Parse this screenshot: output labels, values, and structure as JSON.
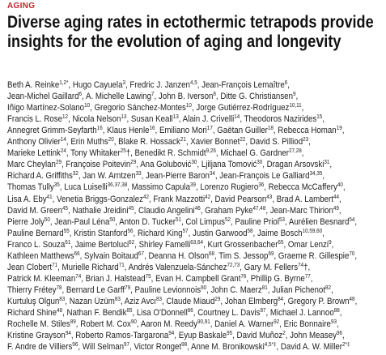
{
  "section": "AGING",
  "title": [
    "Diverse aging rates in ectothermic tetrapods provide",
    "insights for the evolution of aging and longevity"
  ],
  "authors": [
    [
      {
        "text": "Beth A. Reinke",
        "sup": "1,2*"
      },
      {
        "text": ", Hugo Cayuela",
        "sup": "3"
      },
      {
        "text": ", Fredric J. Janzen",
        "sup": "4,5"
      },
      {
        "text": ", Jean-François Lemaître",
        "sup": "6"
      },
      {
        "text": ","
      }
    ],
    [
      {
        "text": "Jean-Michel Gaillard",
        "sup": "6"
      },
      {
        "text": ", A. Michelle Lawing",
        "sup": "7"
      },
      {
        "text": ", John B. Iverson",
        "sup": "8"
      },
      {
        "text": ", Ditte G. Christiansen",
        "sup": "9"
      },
      {
        "text": ","
      }
    ],
    [
      {
        "text": "Iñigo Martínez-Solano",
        "sup": "10"
      },
      {
        "text": ", Gregorio Sánchez-Montes",
        "sup": "10"
      },
      {
        "text": ", Jorge Gutiérrez-Rodríguez",
        "sup": "10,11"
      },
      {
        "text": ","
      }
    ],
    [
      {
        "text": "Francis L. Rose",
        "sup": "12"
      },
      {
        "text": ", Nicola Nelson",
        "sup": "13"
      },
      {
        "text": ", Susan Keall",
        "sup": "13"
      },
      {
        "text": ", Alain J. Crivelli",
        "sup": "14"
      },
      {
        "text": ", Theodoros Nazirides",
        "sup": "15"
      },
      {
        "text": ","
      }
    ],
    [
      {
        "text": "Annegret Grimm-Seyfarth",
        "sup": "16"
      },
      {
        "text": ", Klaus Henle",
        "sup": "16"
      },
      {
        "text": ", Emiliano Mori",
        "sup": "17"
      },
      {
        "text": ", Gaëtan Guiller",
        "sup": "18"
      },
      {
        "text": ", Rebecca Homan",
        "sup": "19"
      },
      {
        "text": ","
      }
    ],
    [
      {
        "text": "Anthony Olivier",
        "sup": "14"
      },
      {
        "text": ", Erin Muths",
        "sup": "20"
      },
      {
        "text": ", Blake R. Hossack",
        "sup": "21"
      },
      {
        "text": ", Xavier Bonnet",
        "sup": "22"
      },
      {
        "text": ", David S. Pilliod",
        "sup": "23"
      },
      {
        "text": ","
      }
    ],
    [
      {
        "text": "Marieke Lettink",
        "sup": "24"
      },
      {
        "text": ", Tony Whitaker",
        "sup": "25"
      },
      {
        "text": "†, Benedikt R. Schmidt",
        "sup": "9,26"
      },
      {
        "text": ", Michael G. Gardner",
        "sup": "27,28"
      },
      {
        "text": ","
      }
    ],
    [
      {
        "text": "Marc Cheylan",
        "sup": "29"
      },
      {
        "text": ", Françoise Poitevin",
        "sup": "29"
      },
      {
        "text": ", Ana Golubović",
        "sup": "30"
      },
      {
        "text": ", Ljiljana Tomović",
        "sup": "30"
      },
      {
        "text": ", Dragan Arsovski",
        "sup": "31"
      },
      {
        "text": ","
      }
    ],
    [
      {
        "text": "Richard A. Griffiths",
        "sup": "32"
      },
      {
        "text": ", Jan W. Arntzen",
        "sup": "33"
      },
      {
        "text": ", Jean-Pierre Baron",
        "sup": "34"
      },
      {
        "text": ", Jean-François Le Galliard",
        "sup": "34,35"
      },
      {
        "text": ","
      }
    ],
    [
      {
        "text": "Thomas Tully",
        "sup": "35"
      },
      {
        "text": ", Luca Luiselli",
        "sup": "36,37,38"
      },
      {
        "text": ", Massimo Capula",
        "sup": "39"
      },
      {
        "text": ", Lorenzo Rugiero",
        "sup": "36"
      },
      {
        "text": ", Rebecca McCaffery",
        "sup": "40"
      },
      {
        "text": ","
      }
    ],
    [
      {
        "text": "Lisa A. Eby",
        "sup": "41"
      },
      {
        "text": ", Venetia Briggs-Gonzalez",
        "sup": "42"
      },
      {
        "text": ", Frank Mazzotti",
        "sup": "42"
      },
      {
        "text": ", David Pearson",
        "sup": "43"
      },
      {
        "text": ", Brad A. Lambert",
        "sup": "44"
      },
      {
        "text": ","
      }
    ],
    [
      {
        "text": "David M. Green",
        "sup": "45"
      },
      {
        "text": ", Nathalie Jreidini",
        "sup": "45"
      },
      {
        "text": ", Claudio Angelini",
        "sup": "46"
      },
      {
        "text": ", Graham Pyke",
        "sup": "47,48"
      },
      {
        "text": ", Jean-Marc Thirion",
        "sup": "49"
      },
      {
        "text": ","
      }
    ],
    [
      {
        "text": "Pierre Joly",
        "sup": "50"
      },
      {
        "text": ", Jean-Paul Léna",
        "sup": "50"
      },
      {
        "text": ", Anton D. Tucker",
        "sup": "51"
      },
      {
        "text": ", Col Limpus",
        "sup": "52"
      },
      {
        "text": ", Pauline Priol",
        "sup": "53"
      },
      {
        "text": ", Aurélien Besnard",
        "sup": "54"
      },
      {
        "text": ","
      }
    ],
    [
      {
        "text": "Pauline Bernard",
        "sup": "55"
      },
      {
        "text": ", Kristin Stanford",
        "sup": "56"
      },
      {
        "text": ", Richard King",
        "sup": "57"
      },
      {
        "text": ", Justin Garwood",
        "sup": "58"
      },
      {
        "text": ", Jaime Bosch",
        "sup": "10,59,60"
      },
      {
        "text": ","
      }
    ],
    [
      {
        "text": "Franco L. Souza",
        "sup": "61"
      },
      {
        "text": ", Jaime Bertoluci",
        "sup": "62"
      },
      {
        "text": ", Shirley Famelli",
        "sup": "63,64"
      },
      {
        "text": ", Kurt Grossenbacher",
        "sup": "65"
      },
      {
        "text": ", Omar Lenzi",
        "sup": "9"
      },
      {
        "text": ","
      }
    ],
    [
      {
        "text": "Kathleen Matthews",
        "sup": "66"
      },
      {
        "text": ", Sylvain Boitaud",
        "sup": "67"
      },
      {
        "text": ", Deanna H. Olson",
        "sup": "68"
      },
      {
        "text": ", Tim S. Jessop",
        "sup": "69"
      },
      {
        "text": ", Graeme R. Gillespie",
        "sup": "70"
      },
      {
        "text": ","
      }
    ],
    [
      {
        "text": "Jean Clobert",
        "sup": "71"
      },
      {
        "text": ", Murielle Richard",
        "sup": "71"
      },
      {
        "text": ", Andrés Valenzuela-Sánchez",
        "sup": "72,73"
      },
      {
        "text": ", Gary M. Fellers",
        "sup": "74"
      },
      {
        "text": "†,"
      }
    ],
    [
      {
        "text": "Patrick M. Kleeman",
        "sup": "74"
      },
      {
        "text": ", Brian J. Halstead",
        "sup": "75"
      },
      {
        "text": ", Evan H. Campbell Grant",
        "sup": "76"
      },
      {
        "text": ", Phillip G. Byrne",
        "sup": "77"
      },
      {
        "text": ","
      }
    ],
    [
      {
        "text": "Thierry Frétey",
        "sup": "78"
      },
      {
        "text": ", Bernard Le Garff",
        "sup": "79"
      },
      {
        "text": ", Pauline Levionnois",
        "sup": "80"
      },
      {
        "text": ", John C. Maerz",
        "sup": "81"
      },
      {
        "text": ", Julian Pichenot",
        "sup": "82"
      },
      {
        "text": ","
      }
    ],
    [
      {
        "text": "Kurtuluş Olgun",
        "sup": "83"
      },
      {
        "text": ", Nazan Üzüm",
        "sup": "83"
      },
      {
        "text": ", Aziz Avcı",
        "sup": "83"
      },
      {
        "text": ", Claude Miaud",
        "sup": "29"
      },
      {
        "text": ", Johan Elmberg",
        "sup": "84"
      },
      {
        "text": ", Gregory P. Brown",
        "sup": "48"
      },
      {
        "text": ","
      }
    ],
    [
      {
        "text": "Richard Shine",
        "sup": "48"
      },
      {
        "text": ", Nathan F. Bendik",
        "sup": "85"
      },
      {
        "text": ", Lisa O'Donnell",
        "sup": "86"
      },
      {
        "text": ", Courtney L. Davis",
        "sup": "87"
      },
      {
        "text": ", Michael J. Lannoo",
        "sup": "88"
      },
      {
        "text": ","
      }
    ],
    [
      {
        "text": "Rochelle M. Stiles",
        "sup": "89"
      },
      {
        "text": ", Robert M. Cox",
        "sup": "90"
      },
      {
        "text": ", Aaron M. Reedy",
        "sup": "90,91"
      },
      {
        "text": ", Daniel A. Warner",
        "sup": "92"
      },
      {
        "text": ", Eric Bonnaire",
        "sup": "93"
      },
      {
        "text": ","
      }
    ],
    [
      {
        "text": "Kristine Grayson",
        "sup": "94"
      },
      {
        "text": ", Roberto Ramos-Targarona",
        "sup": "94"
      },
      {
        "text": ", Eyup Baskale",
        "sup": "95"
      },
      {
        "text": ", David Muñoz",
        "sup": "2"
      },
      {
        "text": ", John Measey",
        "sup": "96"
      },
      {
        "text": ","
      }
    ],
    [
      {
        "text": "F. Andre de Villiers",
        "sup": "96"
      },
      {
        "text": ", Will Selman",
        "sup": "97"
      },
      {
        "text": ", Victor Ronget",
        "sup": "98"
      },
      {
        "text": ", Anne M. Bronikowski",
        "sup": "4,5*‡"
      },
      {
        "text": ", David A. W. Miller",
        "sup": "2*‡"
      }
    ]
  ]
}
